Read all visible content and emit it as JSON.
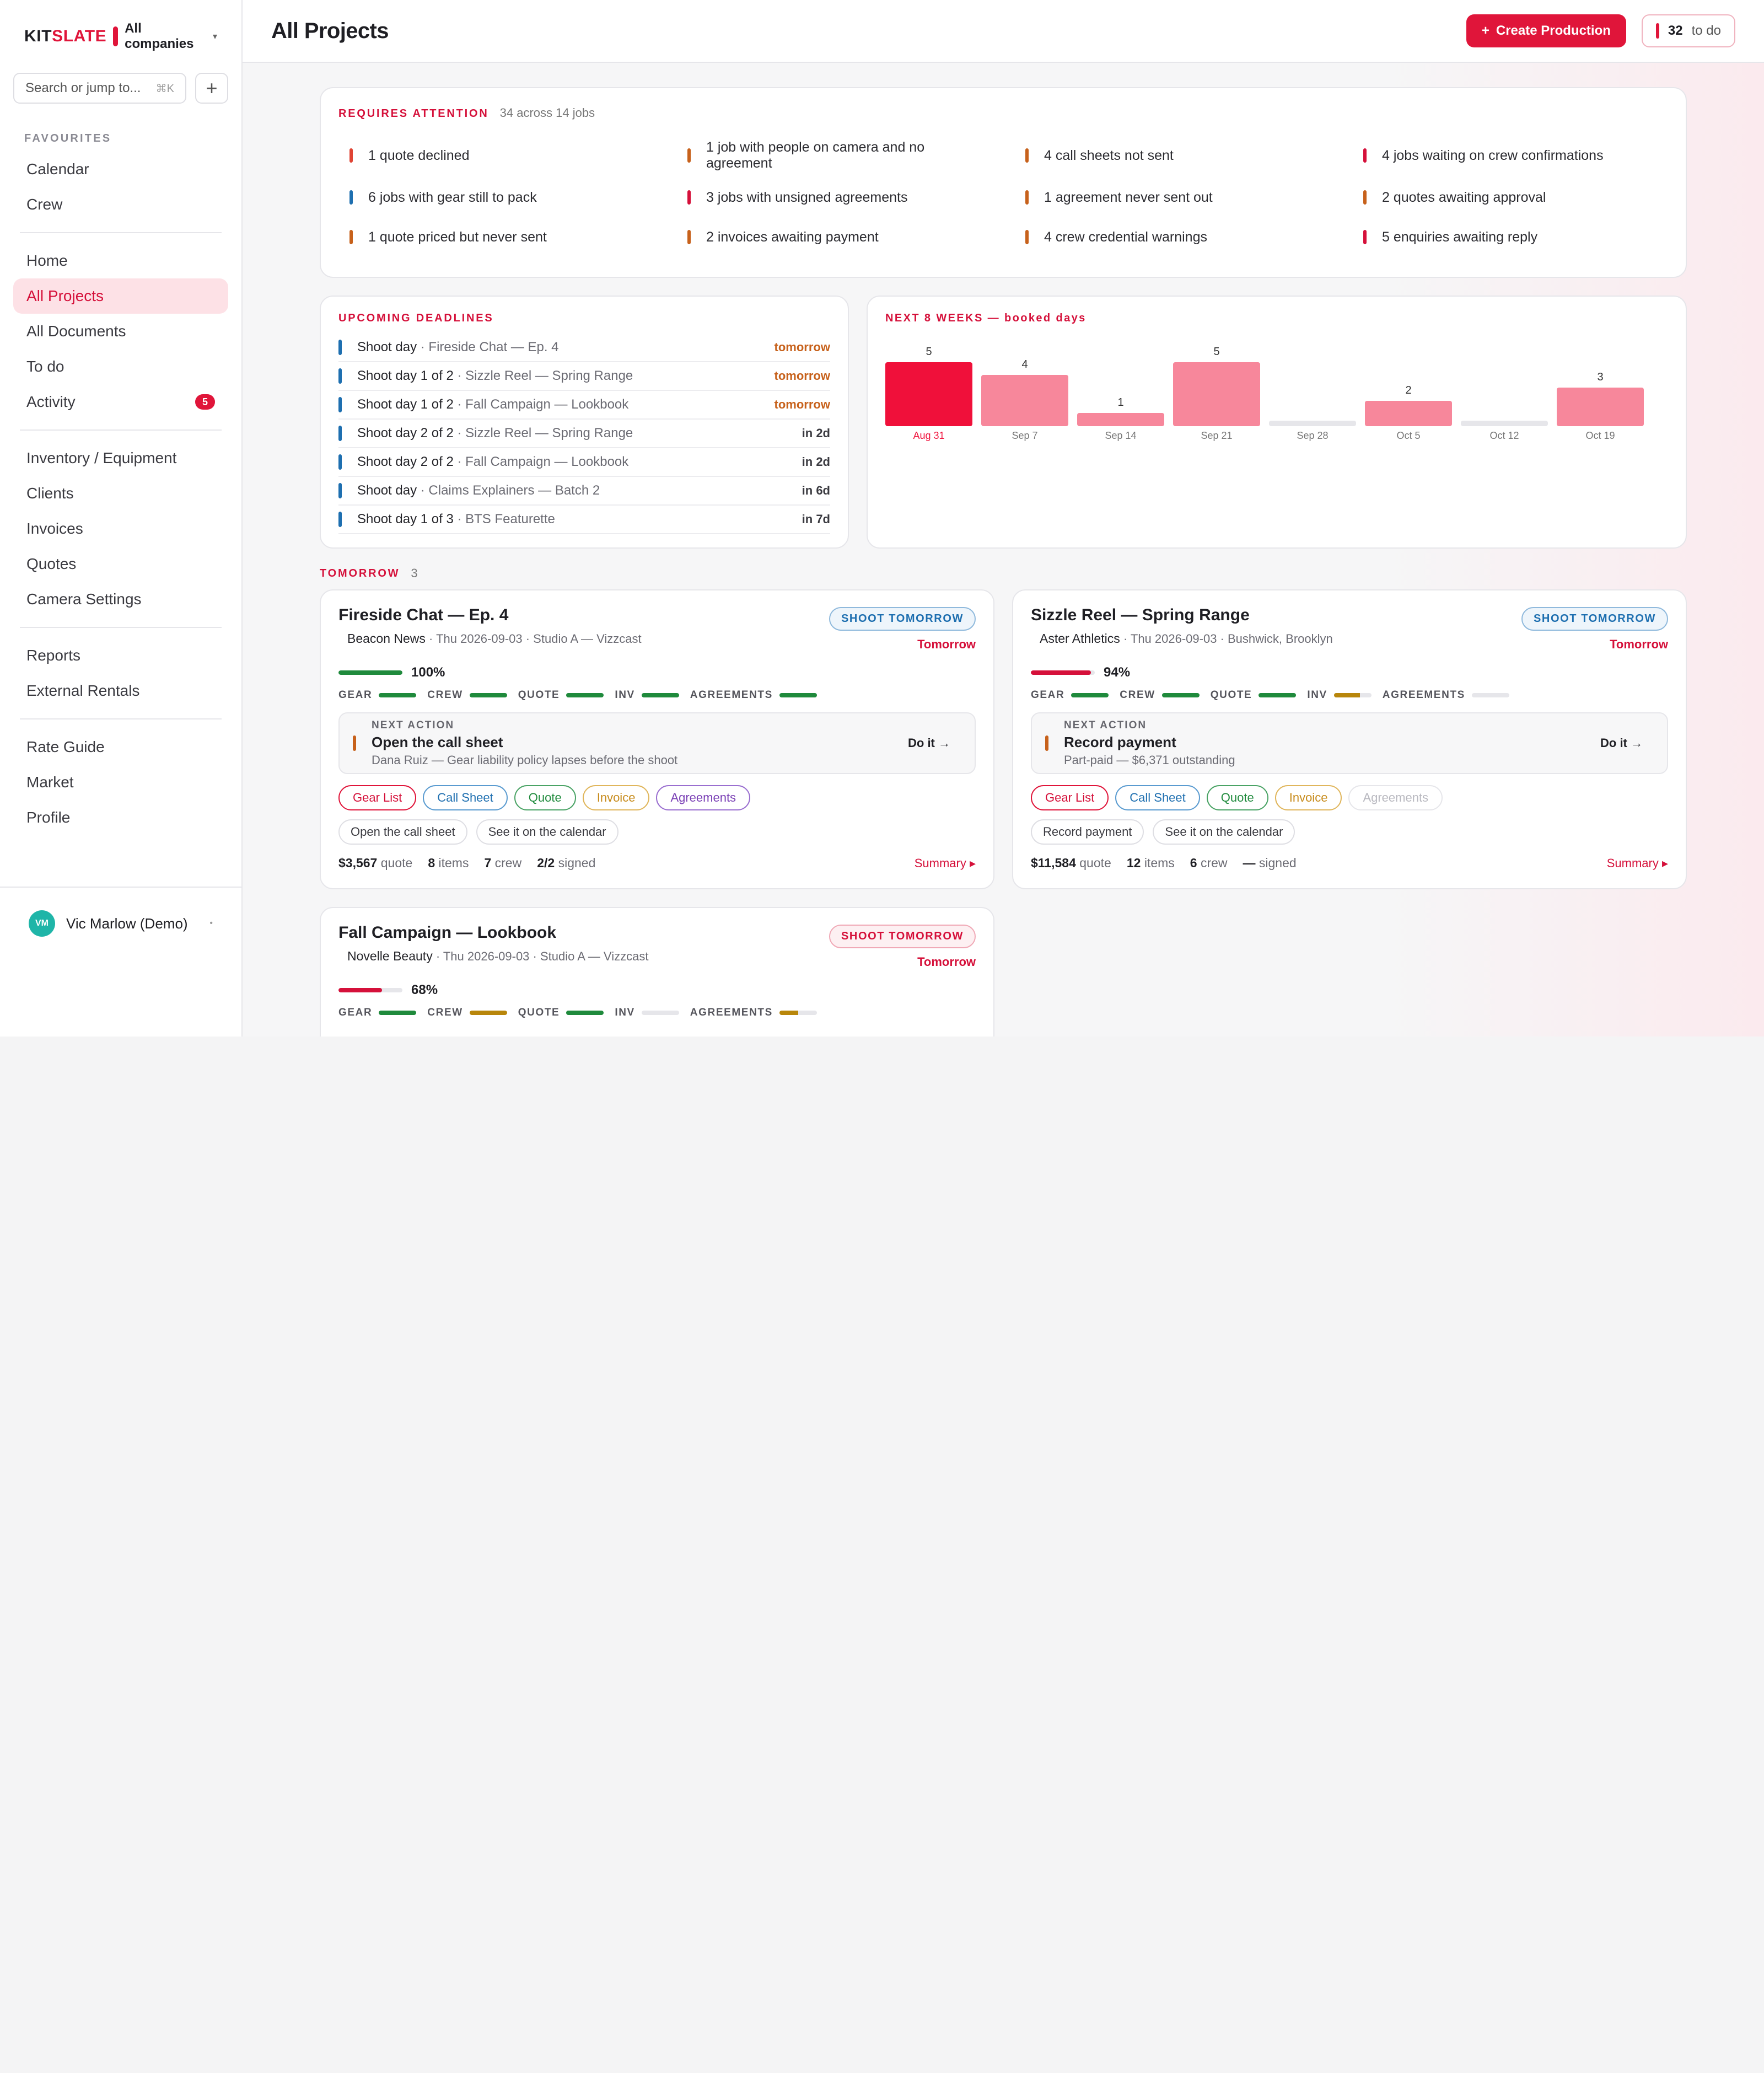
{
  "brand": {
    "name_part1": "KIT",
    "name_part2": "SLATE",
    "company": "All companies"
  },
  "search": {
    "placeholder": "Search or jump to...",
    "shortcut": "⌘K"
  },
  "sidebar": {
    "favourites_label": "FAVOURITES",
    "favourites": [
      {
        "label": "Calendar"
      },
      {
        "label": "Crew"
      }
    ],
    "group1": [
      {
        "label": "Home"
      },
      {
        "label": "All Projects"
      },
      {
        "label": "All Documents"
      },
      {
        "label": "To do"
      },
      {
        "label": "Activity",
        "badge": "5"
      }
    ],
    "group2": [
      {
        "label": "Inventory / Equipment"
      },
      {
        "label": "Clients"
      },
      {
        "label": "Invoices"
      },
      {
        "label": "Quotes"
      },
      {
        "label": "Camera Settings"
      }
    ],
    "group3": [
      {
        "label": "Reports"
      },
      {
        "label": "External Rentals"
      }
    ],
    "group4": [
      {
        "label": "Rate Guide"
      },
      {
        "label": "Market"
      },
      {
        "label": "Profile"
      }
    ],
    "user": {
      "initials": "VM",
      "name": "Vic Marlow (Demo)"
    }
  },
  "header": {
    "title": "All Projects",
    "create_label": "Create Production",
    "todo_count": "32",
    "todo_label": "to do"
  },
  "attention": {
    "title": "REQUIRES ATTENTION",
    "subtitle": "34 across 14 jobs",
    "items": [
      {
        "text": "1 quote declined",
        "color": "#e04434"
      },
      {
        "text": "1 job with people on camera and no agreement",
        "color": "#c7611b"
      },
      {
        "text": "4 call sheets not sent",
        "color": "#c7611b"
      },
      {
        "text": "4 jobs waiting on crew confirmations",
        "color": "#d5103a"
      },
      {
        "text": "6 jobs with gear still to pack",
        "color": "#1e6fb0"
      },
      {
        "text": "3 jobs with unsigned agreements",
        "color": "#d5103a"
      },
      {
        "text": "1 agreement never sent out",
        "color": "#c7611b"
      },
      {
        "text": "2 quotes awaiting approval",
        "color": "#c7611b"
      },
      {
        "text": "1 quote priced but never sent",
        "color": "#c7611b"
      },
      {
        "text": "2 invoices awaiting payment",
        "color": "#c7611b"
      },
      {
        "text": "4 crew credential warnings",
        "color": "#c7611b"
      },
      {
        "text": "5 enquiries awaiting reply",
        "color": "#d5103a"
      }
    ]
  },
  "deadlines": {
    "title": "UPCOMING DEADLINES",
    "rows": [
      {
        "main": "Shoot day",
        "sub": " · Fireside Chat — Ep. 4",
        "when": "tomorrow",
        "soon": true
      },
      {
        "main": "Shoot day 1 of 2",
        "sub": " · Sizzle Reel — Spring Range",
        "when": "tomorrow",
        "soon": true
      },
      {
        "main": "Shoot day 1 of 2",
        "sub": " · Fall Campaign — Lookbook",
        "when": "tomorrow",
        "soon": true
      },
      {
        "main": "Shoot day 2 of 2",
        "sub": " · Sizzle Reel — Spring Range",
        "when": "in 2d",
        "soon": false
      },
      {
        "main": "Shoot day 2 of 2",
        "sub": " · Fall Campaign — Lookbook",
        "when": "in 2d",
        "soon": false
      },
      {
        "main": "Shoot day",
        "sub": " · Claims Explainers — Batch 2",
        "when": "in 6d",
        "soon": false
      },
      {
        "main": "Shoot day 1 of 3",
        "sub": " · BTS Featurette",
        "when": "in 7d",
        "soon": false
      }
    ]
  },
  "chart_data": {
    "type": "bar",
    "title": "NEXT 8 WEEKS — booked days",
    "categories": [
      "Aug 31",
      "Sep 7",
      "Sep 14",
      "Sep 21",
      "Sep 28",
      "Oct 5",
      "Oct 12",
      "Oct 19"
    ],
    "values": [
      5,
      4,
      1,
      5,
      0,
      2,
      0,
      3
    ],
    "value_labels": [
      "5",
      "4",
      "1",
      "5",
      "",
      "2",
      "",
      "3"
    ],
    "ylim": [
      0,
      5
    ],
    "highlight_index": 0,
    "colors": {
      "highlight": "#f0103a",
      "normal": "#f7879b",
      "empty": "#e6e6ea"
    }
  },
  "tomorrow": {
    "title": "TOMORROW",
    "count": "3"
  },
  "jobs": [
    {
      "title": "Fireside Chat — Ep. 4",
      "client": "Beacon News",
      "meta": " · Thu 2026-09-03 · Studio A — Vizzcast",
      "status": "SHOOT TOMORROW",
      "status_style": "blue",
      "when": "Tomorrow",
      "pct": "100%",
      "pct_value": 1.0,
      "pct_color": "#1f8a3c",
      "dims": [
        {
          "label": "GEAR",
          "fill": 1.0,
          "color": "#1f8a3c"
        },
        {
          "label": "CREW",
          "fill": 1.0,
          "color": "#1f8a3c"
        },
        {
          "label": "QUOTE",
          "fill": 1.0,
          "color": "#1f8a3c"
        },
        {
          "label": "INV",
          "fill": 1.0,
          "color": "#1f8a3c"
        },
        {
          "label": "AGREEMENTS",
          "fill": 1.0,
          "color": "#1f8a3c"
        }
      ],
      "next_label": "NEXT ACTION",
      "next_title": "Open the call sheet",
      "next_sub": "Dana Ruiz — Gear liability policy lapses before the shoot",
      "do_it": "Do it →",
      "chips": [
        {
          "label": "Gear List",
          "style": "red"
        },
        {
          "label": "Call Sheet",
          "style": "blue"
        },
        {
          "label": "Quote",
          "style": "green"
        },
        {
          "label": "Invoice",
          "style": "orange"
        },
        {
          "label": "Agreements",
          "style": "purple"
        }
      ],
      "actions": [
        "Open the call sheet",
        "See it on the calendar"
      ],
      "stats": {
        "quote": "$3,567",
        "quote_lbl": "quote",
        "items": "8",
        "items_lbl": "items",
        "crew": "7",
        "crew_lbl": "crew",
        "signed": "2/2",
        "signed_lbl": "signed"
      },
      "summary": "Summary ▸"
    },
    {
      "title": "Sizzle Reel — Spring Range",
      "client": "Aster Athletics",
      "meta": " · Thu 2026-09-03 · Bushwick, Brooklyn",
      "status": "SHOOT TOMORROW",
      "status_style": "blue",
      "when": "Tomorrow",
      "pct": "94%",
      "pct_value": 0.94,
      "pct_color": "#d5103a",
      "dims": [
        {
          "label": "GEAR",
          "fill": 1.0,
          "color": "#1f8a3c"
        },
        {
          "label": "CREW",
          "fill": 1.0,
          "color": "#1f8a3c"
        },
        {
          "label": "QUOTE",
          "fill": 1.0,
          "color": "#1f8a3c"
        },
        {
          "label": "INV",
          "fill": 0.7,
          "color": "#b8860b"
        },
        {
          "label": "AGREEMENTS",
          "fill": 0,
          "color": "#e6e6ea"
        }
      ],
      "next_label": "NEXT ACTION",
      "next_title": "Record payment",
      "next_sub": "Part-paid — $6,371 outstanding",
      "do_it": "Do it →",
      "chips": [
        {
          "label": "Gear List",
          "style": "red"
        },
        {
          "label": "Call Sheet",
          "style": "blue"
        },
        {
          "label": "Quote",
          "style": "green"
        },
        {
          "label": "Invoice",
          "style": "orange"
        },
        {
          "label": "Agreements",
          "style": "dim"
        }
      ],
      "actions": [
        "Record payment",
        "See it on the calendar"
      ],
      "stats": {
        "quote": "$11,584",
        "quote_lbl": "quote",
        "items": "12",
        "items_lbl": "items",
        "crew": "6",
        "crew_lbl": "crew",
        "signed": "—",
        "signed_lbl": "signed"
      },
      "summary": "Summary ▸"
    },
    {
      "title": "Fall Campaign — Lookbook",
      "client": "Novelle Beauty",
      "meta": " · Thu 2026-09-03 · Studio A — Vizzcast",
      "status": "SHOOT TOMORROW",
      "status_style": "red",
      "when": "Tomorrow",
      "pct": "68%",
      "pct_value": 0.68,
      "pct_color": "#d5103a",
      "dims": [
        {
          "label": "GEAR",
          "fill": 1.0,
          "color": "#1f8a3c"
        },
        {
          "label": "CREW",
          "fill": 1.0,
          "color": "#b8860b"
        },
        {
          "label": "QUOTE",
          "fill": 1.0,
          "color": "#1f8a3c"
        },
        {
          "label": "INV",
          "fill": 0,
          "color": "#e6e6ea"
        },
        {
          "label": "AGREEMENTS",
          "fill": 0.5,
          "color": "#b8860b"
        }
      ]
    }
  ]
}
